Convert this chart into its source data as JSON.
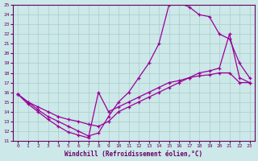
{
  "bg_color": "#cce8e8",
  "grid_color": "#aacccc",
  "line_color": "#990099",
  "xlabel": "Windchill (Refroidissement éolien,°C)",
  "xlim": [
    -0.5,
    23.5
  ],
  "ylim": [
    11,
    25
  ],
  "xticks": [
    0,
    1,
    2,
    3,
    4,
    5,
    6,
    7,
    8,
    9,
    10,
    11,
    12,
    13,
    14,
    15,
    16,
    17,
    18,
    19,
    20,
    21,
    22,
    23
  ],
  "yticks": [
    11,
    12,
    13,
    14,
    15,
    16,
    17,
    18,
    19,
    20,
    21,
    22,
    23,
    24,
    25
  ],
  "line1_x": [
    0,
    1,
    2,
    3,
    4,
    5,
    6,
    7,
    8,
    9,
    10,
    11,
    12,
    13,
    14,
    15,
    16,
    17,
    18,
    19,
    20,
    21,
    22,
    23
  ],
  "line1_y": [
    15.8,
    14.8,
    14.0,
    13.2,
    12.5,
    11.9,
    11.6,
    11.3,
    16.0,
    14.0,
    14.5,
    15.0,
    15.5,
    16.0,
    16.5,
    17.0,
    17.2,
    17.5,
    17.7,
    17.8,
    18.0,
    18.0,
    17.0,
    17.0
  ],
  "line2_x": [
    0,
    1,
    2,
    3,
    4,
    5,
    6,
    7,
    8,
    9,
    10,
    11,
    12,
    13,
    14,
    15,
    16,
    17,
    18,
    19,
    20,
    21,
    22,
    23
  ],
  "line2_y": [
    15.8,
    15.0,
    14.2,
    13.5,
    13.0,
    12.5,
    12.0,
    11.5,
    11.8,
    13.5,
    15.0,
    16.0,
    17.5,
    19.0,
    21.0,
    25.0,
    25.2,
    24.8,
    24.0,
    23.8,
    22.0,
    21.5,
    19.0,
    17.5
  ],
  "line3_x": [
    0,
    1,
    2,
    3,
    4,
    5,
    6,
    7,
    8,
    9,
    10,
    11,
    12,
    13,
    14,
    15,
    16,
    17,
    18,
    19,
    20,
    21,
    22,
    23
  ],
  "line3_y": [
    15.8,
    15.0,
    14.5,
    14.0,
    13.5,
    13.2,
    13.0,
    12.7,
    12.5,
    13.0,
    14.0,
    14.5,
    15.0,
    15.5,
    16.0,
    16.5,
    17.0,
    17.5,
    18.0,
    18.2,
    18.5,
    22.0,
    17.5,
    17.0
  ],
  "marker": "+"
}
